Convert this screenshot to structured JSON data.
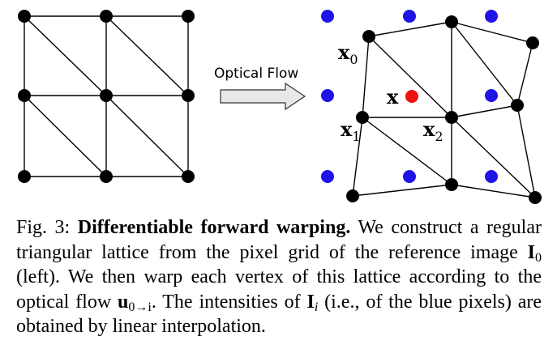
{
  "figure": {
    "arrow_label": "Optical Flow",
    "labels": {
      "x0": {
        "main": "x",
        "sub": "0"
      },
      "x1": {
        "main": "x",
        "sub": "1"
      },
      "x2": {
        "main": "x",
        "sub": "2"
      },
      "x": {
        "main": "x"
      }
    },
    "colors": {
      "vertex": "#000000",
      "blue_pixel": "#1f14e6",
      "red_point": "#ee1111",
      "arrow_fill": "#e8e8e8"
    }
  },
  "caption": {
    "fig_label": "Fig. 3:",
    "title": "Differentiable forward warping.",
    "text_1": "We construct a regular triangular lattice from the pixel grid of the reference image",
    "img_symbol": "I",
    "img_sub": "0",
    "text_2": "(left). We then warp each vertex of this lattice according to the optical flow",
    "flow_symbol": "u",
    "flow_sub": "0→i",
    "text_3": ". The intensities of",
    "img2_symbol": "I",
    "img2_sub": "i",
    "text_4": "(i.e., of the blue pixels) are obtained by linear interpolation."
  }
}
